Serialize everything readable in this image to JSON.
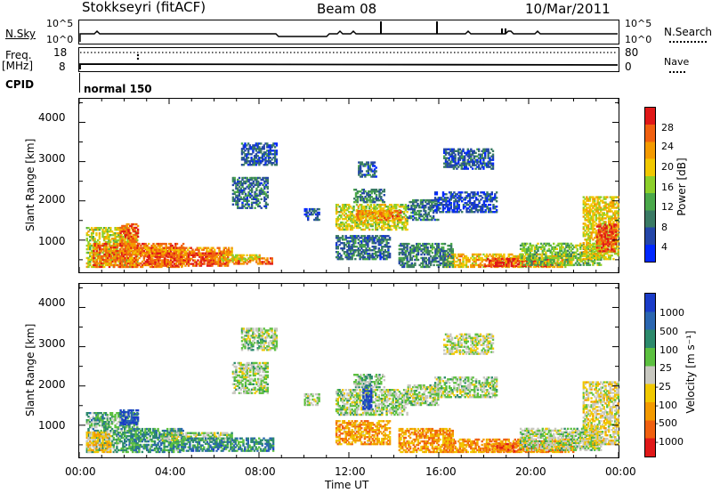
{
  "header": {
    "station": "Stokkseyri (fitACF)",
    "beam": "Beam 08",
    "date": "10/Mar/2011"
  },
  "status_panel": {
    "nsky_label": "N.Sky",
    "nsky_ticks": [
      "10^5",
      "10^0"
    ],
    "nsearch_label": "N.Search",
    "nsearch_ticks": [
      "10^5",
      "10^0"
    ],
    "freq_label": "Freq.",
    "freq_unit": "[MHz]",
    "freq_ticks": [
      "18",
      "8"
    ],
    "nave_label": "Nave",
    "nave_ticks": [
      "80",
      "0"
    ],
    "cpid_label": "CPID",
    "cpid_value": "normal 150"
  },
  "chart_data": [
    {
      "type": "heatmap",
      "parameter": "Power",
      "ylabel": "Slant Range [km]",
      "xlabel": "",
      "x_ticks": [
        "00:00",
        "04:00",
        "08:00",
        "12:00",
        "16:00",
        "20:00",
        "00:00"
      ],
      "y_ticks": [
        "1000",
        "2000",
        "3000",
        "4000"
      ],
      "xlim": [
        0,
        24
      ],
      "ylim": [
        180,
        4600
      ],
      "colorbar": {
        "label": "Power [dB]",
        "ticks": [
          "4",
          "8",
          "12",
          "16",
          "20",
          "24",
          "28"
        ],
        "colors": [
          "#0028ff",
          "#2446a8",
          "#3a7a64",
          "#4aa84a",
          "#8ccf2a",
          "#f0c800",
          "#f39a00",
          "#f06010",
          "#e01818"
        ]
      },
      "regions": [
        {
          "t0": 0.3,
          "t1": 2.6,
          "r0": 300,
          "r1": 1300,
          "level": 0.55
        },
        {
          "t0": 1.8,
          "t1": 2.6,
          "r0": 800,
          "r1": 1400,
          "level": 0.85
        },
        {
          "t0": 0.6,
          "t1": 4.6,
          "r0": 300,
          "r1": 900,
          "level": 0.8
        },
        {
          "t0": 2.2,
          "t1": 6.8,
          "r0": 600,
          "r1": 820,
          "level": 0.75
        },
        {
          "t0": 3.0,
          "t1": 6.6,
          "r0": 330,
          "r1": 650,
          "level": 0.85
        },
        {
          "t0": 5.6,
          "t1": 8.6,
          "r0": 380,
          "r1": 520,
          "level": 0.8
        },
        {
          "t0": 6.3,
          "t1": 8.0,
          "r0": 460,
          "r1": 620,
          "level": 0.6
        },
        {
          "t0": 6.8,
          "t1": 8.4,
          "r0": 1800,
          "r1": 2600,
          "level": 0.25
        },
        {
          "t0": 7.2,
          "t1": 8.8,
          "r0": 2900,
          "r1": 3450,
          "level": 0.2
        },
        {
          "t0": 10.0,
          "t1": 10.7,
          "r0": 1500,
          "r1": 1800,
          "level": 0.2
        },
        {
          "t0": 11.4,
          "t1": 14.6,
          "r0": 1250,
          "r1": 1900,
          "level": 0.55
        },
        {
          "t0": 12.3,
          "t1": 14.3,
          "r0": 1500,
          "r1": 1750,
          "level": 0.75
        },
        {
          "t0": 12.2,
          "t1": 13.6,
          "r0": 1950,
          "r1": 2300,
          "level": 0.3
        },
        {
          "t0": 12.4,
          "t1": 13.2,
          "r0": 2600,
          "r1": 3000,
          "level": 0.2
        },
        {
          "t0": 14.6,
          "t1": 16.0,
          "r0": 1500,
          "r1": 2000,
          "level": 0.25
        },
        {
          "t0": 16.2,
          "t1": 18.4,
          "r0": 2800,
          "r1": 3300,
          "level": 0.2
        },
        {
          "t0": 15.8,
          "t1": 18.6,
          "r0": 1700,
          "r1": 2200,
          "level": 0.15
        },
        {
          "t0": 16.2,
          "t1": 22.0,
          "r0": 300,
          "r1": 650,
          "level": 0.65
        },
        {
          "t0": 18.0,
          "t1": 21.0,
          "r0": 320,
          "r1": 520,
          "level": 0.9
        },
        {
          "t0": 19.6,
          "t1": 23.2,
          "r0": 350,
          "r1": 900,
          "level": 0.45
        },
        {
          "t0": 22.4,
          "t1": 24.0,
          "r0": 500,
          "r1": 2100,
          "level": 0.6
        },
        {
          "t0": 23.0,
          "t1": 23.9,
          "r0": 700,
          "r1": 1400,
          "level": 0.9
        },
        {
          "t0": 11.4,
          "t1": 13.8,
          "r0": 500,
          "r1": 1100,
          "level": 0.25
        },
        {
          "t0": 14.2,
          "t1": 16.6,
          "r0": 300,
          "r1": 900,
          "level": 0.3
        }
      ]
    },
    {
      "type": "heatmap",
      "parameter": "Velocity",
      "ylabel": "Slant Range [km]",
      "xlabel": "Time UT",
      "x_ticks": [
        "00:00",
        "04:00",
        "08:00",
        "12:00",
        "16:00",
        "20:00",
        "00:00"
      ],
      "y_ticks": [
        "1000",
        "2000",
        "3000",
        "4000"
      ],
      "xlim": [
        0,
        24
      ],
      "ylim": [
        180,
        4600
      ],
      "colorbar": {
        "label": "Velocity [m s⁻¹]",
        "ticks": [
          "1000",
          "500",
          "100",
          "25",
          "-25",
          "-100",
          "-500",
          "-1000"
        ],
        "colors": [
          "#1a3cc8",
          "#2a66b0",
          "#2c8a6c",
          "#5cc040",
          "#c8c8c0",
          "#f0c800",
          "#f39a00",
          "#f06010",
          "#e01818"
        ]
      },
      "regions": [
        {
          "t0": 0.3,
          "t1": 2.6,
          "r0": 300,
          "r1": 1300,
          "level": 0.35
        },
        {
          "t0": 0.3,
          "t1": 1.4,
          "r0": 300,
          "r1": 800,
          "level": 0.6
        },
        {
          "t0": 1.8,
          "t1": 2.6,
          "r0": 1000,
          "r1": 1400,
          "level": 0.1
        },
        {
          "t0": 2.2,
          "t1": 4.6,
          "r0": 300,
          "r1": 900,
          "level": 0.3
        },
        {
          "t0": 3.6,
          "t1": 6.8,
          "r0": 600,
          "r1": 820,
          "level": 0.45
        },
        {
          "t0": 4.6,
          "t1": 8.6,
          "r0": 330,
          "r1": 650,
          "level": 0.25
        },
        {
          "t0": 6.8,
          "t1": 8.4,
          "r0": 1800,
          "r1": 2600,
          "level": 0.45
        },
        {
          "t0": 7.2,
          "t1": 8.8,
          "r0": 2900,
          "r1": 3450,
          "level": 0.45
        },
        {
          "t0": 10.0,
          "t1": 10.7,
          "r0": 1500,
          "r1": 1800,
          "level": 0.45
        },
        {
          "t0": 11.4,
          "t1": 14.6,
          "r0": 1250,
          "r1": 1900,
          "level": 0.45
        },
        {
          "t0": 12.6,
          "t1": 13.0,
          "r0": 1400,
          "r1": 2000,
          "level": 0.05
        },
        {
          "t0": 12.2,
          "t1": 13.6,
          "r0": 1950,
          "r1": 2300,
          "level": 0.4
        },
        {
          "t0": 14.6,
          "t1": 16.0,
          "r0": 1500,
          "r1": 2000,
          "level": 0.45
        },
        {
          "t0": 16.2,
          "t1": 18.4,
          "r0": 2800,
          "r1": 3300,
          "level": 0.5
        },
        {
          "t0": 15.8,
          "t1": 18.6,
          "r0": 1700,
          "r1": 2200,
          "level": 0.45
        },
        {
          "t0": 16.2,
          "t1": 22.0,
          "r0": 300,
          "r1": 650,
          "level": 0.72
        },
        {
          "t0": 18.0,
          "t1": 21.0,
          "r0": 320,
          "r1": 520,
          "level": 0.78
        },
        {
          "t0": 19.6,
          "t1": 23.2,
          "r0": 350,
          "r1": 900,
          "level": 0.45
        },
        {
          "t0": 22.4,
          "t1": 24.0,
          "r0": 500,
          "r1": 2100,
          "level": 0.55
        },
        {
          "t0": 11.4,
          "t1": 13.8,
          "r0": 500,
          "r1": 1100,
          "level": 0.7
        },
        {
          "t0": 14.2,
          "t1": 16.6,
          "r0": 300,
          "r1": 900,
          "level": 0.72
        }
      ]
    }
  ]
}
